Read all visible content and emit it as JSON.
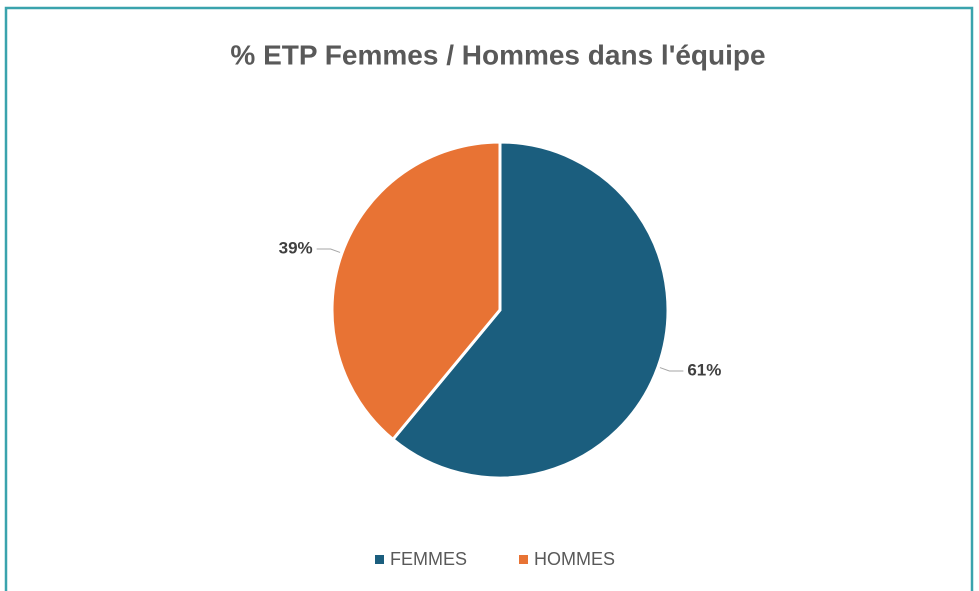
{
  "chart_data": {
    "type": "pie",
    "title": "% ETP Femmes / Hommes dans l'équipe",
    "categories": [
      "FEMMES",
      "HOMMES"
    ],
    "values": [
      61,
      39
    ],
    "value_labels": [
      "61%",
      "39%"
    ],
    "colors": [
      "#1b5e7e",
      "#e87334"
    ],
    "legend": "bottom"
  }
}
